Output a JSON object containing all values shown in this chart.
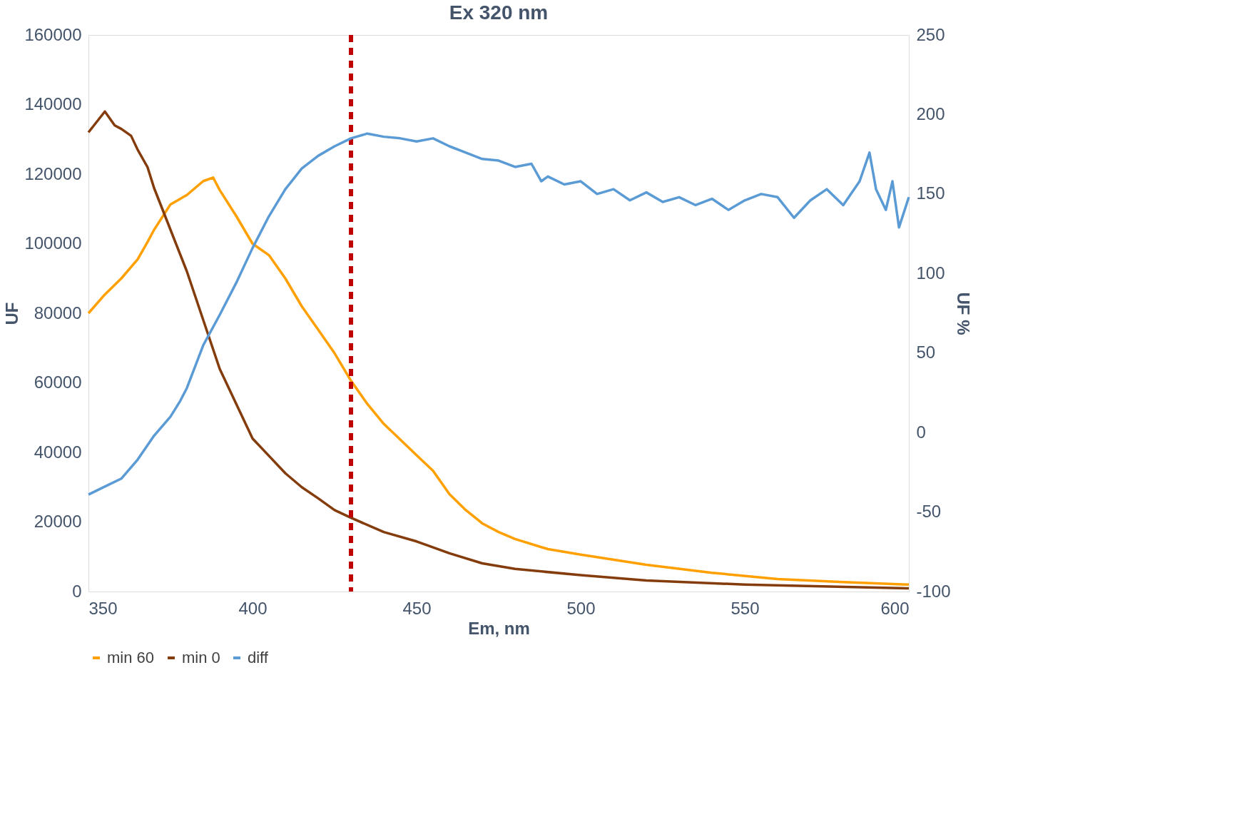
{
  "chart_data": {
    "type": "line",
    "title": "Ex 320 nm",
    "xlabel": "Em, nm",
    "ylabel": "UF",
    "y2label": "UF %",
    "xlim": [
      350,
      600
    ],
    "xticks": [
      350,
      400,
      450,
      500,
      550,
      600
    ],
    "ylim": [
      0,
      160000
    ],
    "yticks": [
      0,
      20000,
      40000,
      60000,
      80000,
      100000,
      120000,
      140000,
      160000
    ],
    "y2lim": [
      -100,
      250
    ],
    "y2ticks": [
      -100,
      -50,
      0,
      50,
      100,
      150,
      200,
      250
    ],
    "legend": "bottom",
    "grid": false,
    "line_style": "solid",
    "marker": "none",
    "ref_lines": [
      {
        "axis": "x",
        "value": 430,
        "color": "#c00000",
        "line_style": "dashed"
      }
    ],
    "series": [
      {
        "name": "min 60",
        "color": "#ffa000",
        "x": [
          350,
          355,
          360,
          365,
          368,
          370,
          375,
          380,
          385,
          388,
          390,
          395,
          400,
          405,
          410,
          415,
          420,
          425,
          430,
          435,
          440,
          445,
          450,
          455,
          460,
          465,
          470,
          475,
          480,
          490,
          500,
          520,
          540,
          560,
          580,
          600
        ],
        "values": [
          80000,
          85400,
          90000,
          95500,
          100500,
          104000,
          111300,
          114000,
          118000,
          119000,
          115400,
          108000,
          100000,
          96700,
          90000,
          82000,
          75300,
          68500,
          60600,
          53900,
          48200,
          43700,
          39200,
          34700,
          28000,
          23400,
          19600,
          17100,
          15100,
          12200,
          10600,
          7700,
          5400,
          3600,
          2700,
          2000
        ]
      },
      {
        "name": "min 0",
        "color": "#843c0c",
        "x": [
          350,
          355,
          358,
          360,
          363,
          365,
          368,
          370,
          375,
          380,
          385,
          390,
          395,
          400,
          405,
          410,
          415,
          420,
          425,
          430,
          440,
          450,
          460,
          470,
          480,
          500,
          520,
          550,
          600
        ],
        "values": [
          132000,
          138000,
          134000,
          133000,
          131000,
          127000,
          122000,
          116000,
          104000,
          92000,
          78000,
          64000,
          54000,
          44000,
          39000,
          34000,
          30000,
          26800,
          23400,
          21200,
          17100,
          14400,
          11000,
          8100,
          6500,
          4700,
          3200,
          2000,
          900
        ]
      },
      {
        "name": "diff",
        "color": "#5b9bd5",
        "axis": "y2",
        "x": [
          350,
          355,
          360,
          365,
          370,
          375,
          378,
          380,
          385,
          390,
          395,
          400,
          405,
          410,
          415,
          420,
          425,
          430,
          435,
          440,
          445,
          450,
          455,
          460,
          465,
          470,
          475,
          480,
          485,
          488,
          490,
          495,
          500,
          505,
          510,
          515,
          520,
          525,
          530,
          535,
          540,
          545,
          550,
          555,
          560,
          565,
          570,
          575,
          580,
          585,
          588,
          590,
          593,
          595,
          597,
          600
        ],
        "values": [
          -39,
          -34,
          -29,
          -17,
          -2,
          10,
          20,
          28,
          55,
          74,
          94,
          116,
          136,
          153,
          166,
          174,
          180,
          185,
          188,
          186,
          185,
          183,
          185,
          180,
          176,
          172,
          171,
          167,
          169,
          158,
          161,
          156,
          158,
          150,
          153,
          146,
          151,
          145,
          148,
          143,
          147,
          140,
          146,
          150,
          148,
          135,
          146,
          153,
          143,
          158,
          176,
          153,
          140,
          158,
          129,
          148
        ]
      }
    ]
  }
}
